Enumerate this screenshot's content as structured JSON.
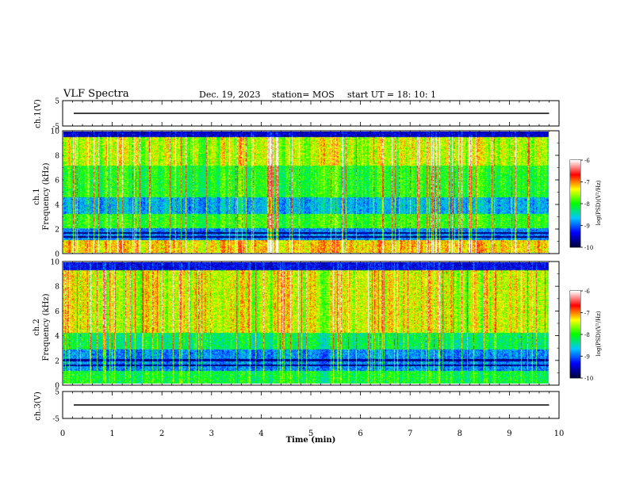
{
  "header": {
    "title": "VLF Spectra",
    "date": "Dec. 19, 2023",
    "station": "station= MOS",
    "start": "start  UT =   18: 10: 1"
  },
  "panels": {
    "ch1_voltage": {
      "ylabel": "ch.1(V)",
      "yticks": [
        "5",
        "-5"
      ]
    },
    "ch1_spectrogram": {
      "ylabel": "ch.1\nFrequency (kHz)",
      "yticks": [
        "0",
        "2",
        "4",
        "6",
        "8",
        "10"
      ]
    },
    "ch2_spectrogram": {
      "ylabel": "ch.2\nFrequency (kHz)",
      "yticks": [
        "0",
        "2",
        "4",
        "6",
        "8",
        "10"
      ]
    },
    "ch3_voltage": {
      "ylabel": "ch.3(V)",
      "yticks": [
        "5",
        "-5"
      ]
    }
  },
  "colorbar": {
    "ticks": [
      "-6",
      "-7",
      "-8",
      "-9",
      "-10"
    ],
    "label": "log(PSD)(V²/Hz)",
    "colors": [
      "#00003a",
      "#0000ff",
      "#00c8ff",
      "#00ff00",
      "#ffff00",
      "#ff0000",
      "#ffffff"
    ]
  },
  "chart_data": {
    "type": "heatmap",
    "xlabel": "Time (min)",
    "xlim": [
      0,
      10
    ],
    "xticks": [
      "0",
      "1",
      "2",
      "3",
      "4",
      "5",
      "6",
      "7",
      "8",
      "9",
      "10"
    ],
    "data_end_min": 9.8,
    "voltage_ylim": [
      -5,
      5
    ],
    "frequency_ylim_khz": [
      0,
      10
    ],
    "psd_log_range": [
      -10,
      -6
    ],
    "ch1_voltage_level": 0,
    "ch3_voltage_level": 0
  }
}
